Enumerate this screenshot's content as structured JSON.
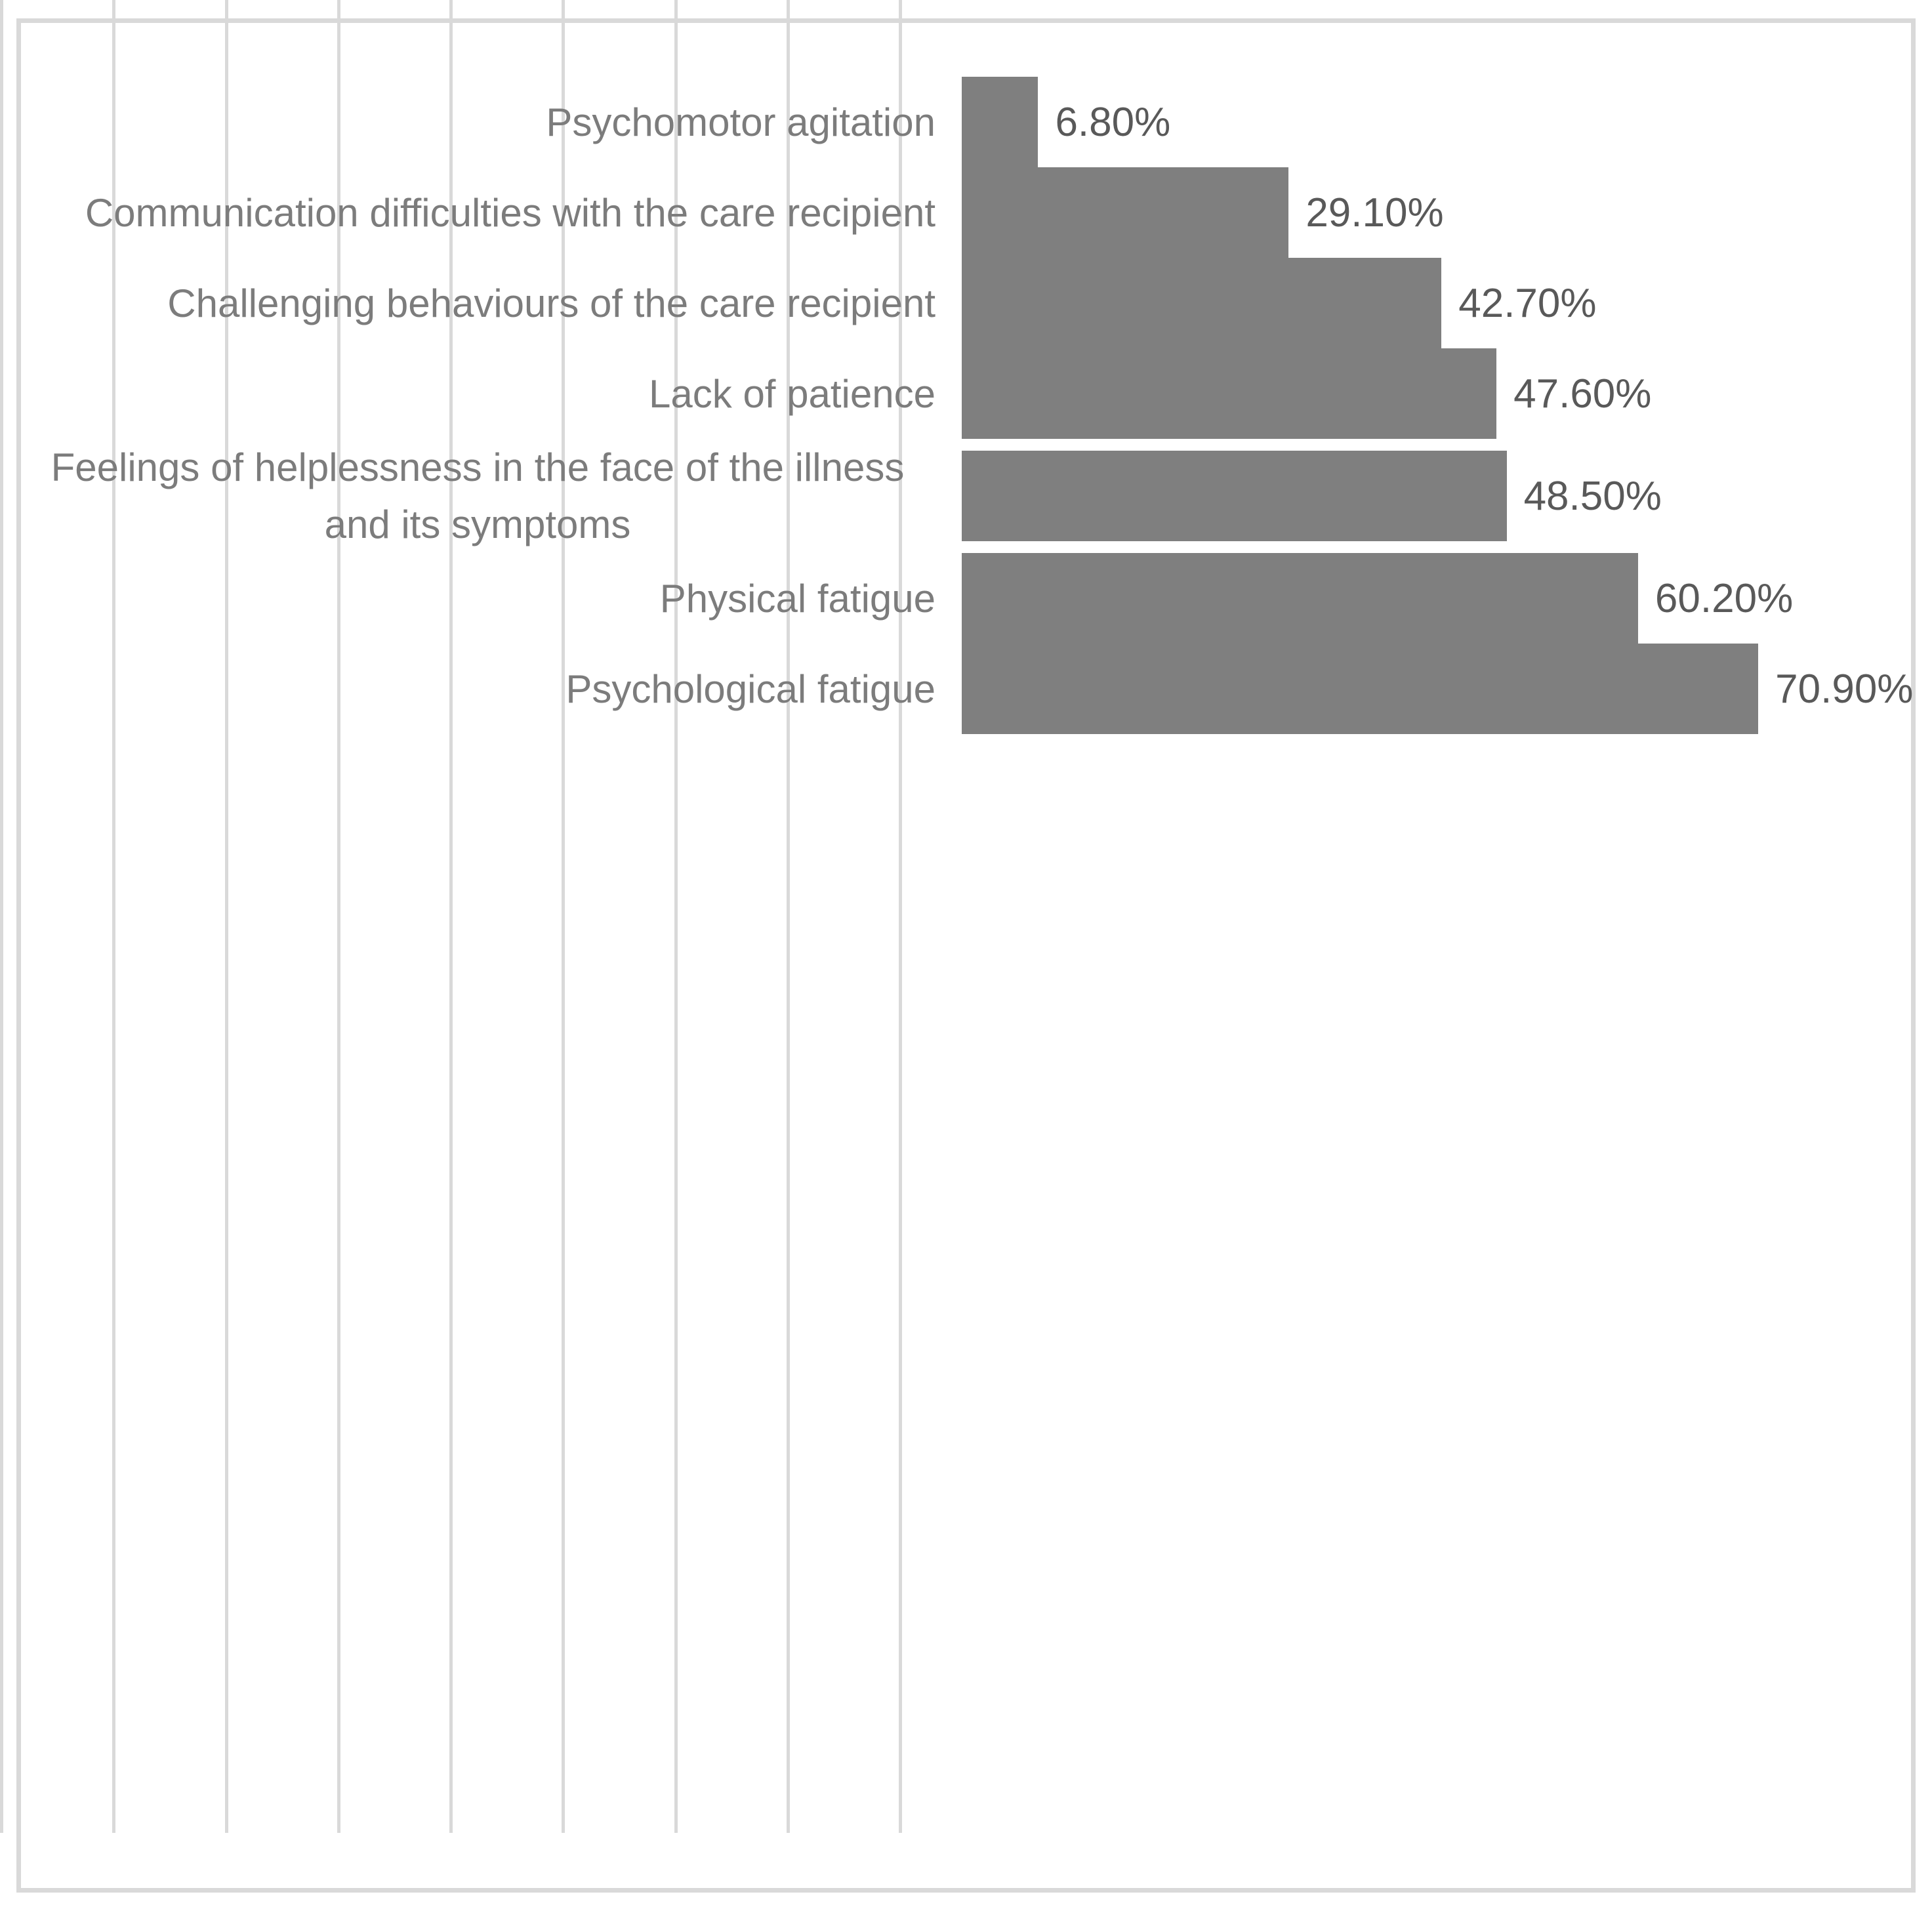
{
  "chart_data": {
    "type": "bar",
    "orientation": "horizontal",
    "title": "",
    "xlabel": "",
    "ylabel": "",
    "categories": [
      "Psychomotor agitation",
      "Communication difficulties with the care recipient",
      "Challenging behaviours of the care recipient",
      "Lack of patience",
      "Feelings of helplessness in the face of the illness and its symptoms",
      "Physical fatigue",
      "Psychological fatigue"
    ],
    "values": [
      6.8,
      29.1,
      42.7,
      47.6,
      48.5,
      60.2,
      70.9
    ],
    "value_labels": [
      "6.80%",
      "29.10%",
      "42.70%",
      "47.60%",
      "48.50%",
      "60.20%",
      "70.90%"
    ],
    "xlim": [
      0,
      80
    ],
    "gridline_interval": 10,
    "grid": "vertical-only",
    "axis_tick_labels_visible": false,
    "legend": "none",
    "colors": {
      "bar": "#7f7f7f",
      "gridline": "#d9d9d9",
      "category_label": "#7c7c7c",
      "value_label": "#595959",
      "frame_border": "#d9d9d9",
      "background": "#ffffff"
    }
  }
}
